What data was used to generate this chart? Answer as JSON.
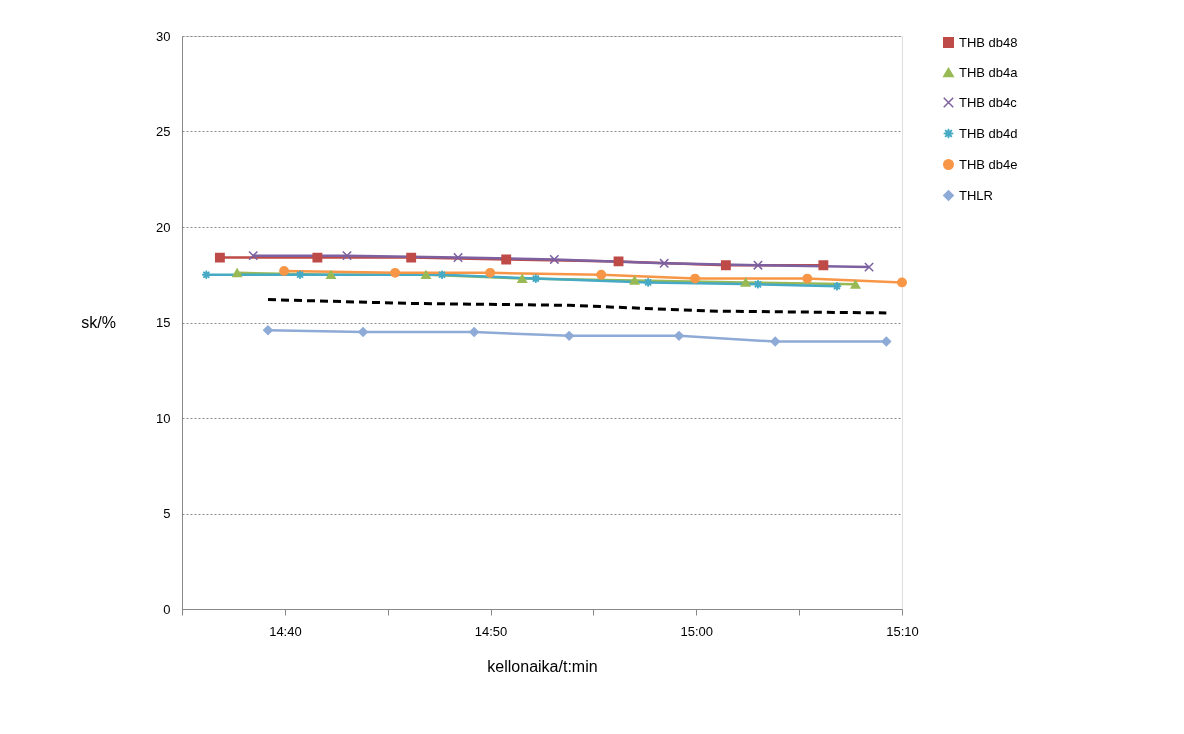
{
  "chart_data": {
    "type": "line",
    "xlabel": "kellonaika/t:min",
    "ylabel": "sk/%",
    "xlim": [
      14.5833,
      15.1667
    ],
    "xticks": [
      {
        "value": 14.5833,
        "label": null
      },
      {
        "value": 14.6667,
        "label": "14:40"
      },
      {
        "value": 14.75,
        "label": null
      },
      {
        "value": 14.8333,
        "label": "14:50"
      },
      {
        "value": 14.9167,
        "label": null
      },
      {
        "value": 15,
        "label": "15:00"
      },
      {
        "value": 15.0833,
        "label": null
      },
      {
        "value": 15.1667,
        "label": "15:10"
      }
    ],
    "ylim": [
      0,
      30
    ],
    "yticks": [
      0,
      5,
      10,
      15,
      20,
      25,
      30
    ],
    "grid": "y",
    "legend": "right",
    "series": [
      {
        "color": "#000000",
        "line_style": "dashed",
        "marker": "none",
        "x": [
          14.653,
          14.767,
          14.897,
          15.011,
          15.154
        ],
        "values": [
          16.2,
          16.0,
          15.9,
          15.6,
          15.5
        ]
      },
      {
        "name": "THB db48",
        "color": "#be4b48",
        "marker": "square",
        "x": [
          14.614,
          14.693,
          14.769,
          14.846,
          14.937,
          15.024,
          15.103
        ],
        "values": [
          18.4,
          18.4,
          18.4,
          18.3,
          18.2,
          18.0,
          18.0
        ]
      },
      {
        "name": "THB db4a",
        "color": "#98b954",
        "marker": "triangle",
        "x": [
          14.628,
          14.704,
          14.781,
          14.859,
          14.95,
          15.04,
          15.129
        ],
        "values": [
          17.6,
          17.5,
          17.5,
          17.3,
          17.2,
          17.1,
          17.0
        ]
      },
      {
        "name": "THB db4c",
        "color": "#7d60a0",
        "marker": "cross",
        "x": [
          14.641,
          14.717,
          14.807,
          14.885,
          14.974,
          15.05,
          15.14
        ],
        "values": [
          18.5,
          18.5,
          18.4,
          18.3,
          18.1,
          18.0,
          17.9
        ]
      },
      {
        "name": "THB db4d",
        "color": "#46aac5",
        "marker": "star",
        "x": [
          14.603,
          14.679,
          14.794,
          14.87,
          14.961,
          15.05,
          15.114
        ],
        "values": [
          17.5,
          17.5,
          17.5,
          17.3,
          17.1,
          17.0,
          16.9
        ]
      },
      {
        "name": "THB db4e",
        "color": "#f79646",
        "marker": "circle",
        "x": [
          14.666,
          14.756,
          14.833,
          14.923,
          14.999,
          15.09,
          15.1667
        ],
        "values": [
          17.7,
          17.6,
          17.6,
          17.5,
          17.3,
          17.3,
          17.1
        ]
      },
      {
        "name": "THLR",
        "color": "#8eaad6",
        "marker": "diamond",
        "x": [
          14.653,
          14.73,
          14.82,
          14.897,
          14.986,
          15.064,
          15.154
        ],
        "values": [
          14.6,
          14.5,
          14.5,
          14.3,
          14.3,
          14.0,
          14.0
        ]
      }
    ]
  }
}
